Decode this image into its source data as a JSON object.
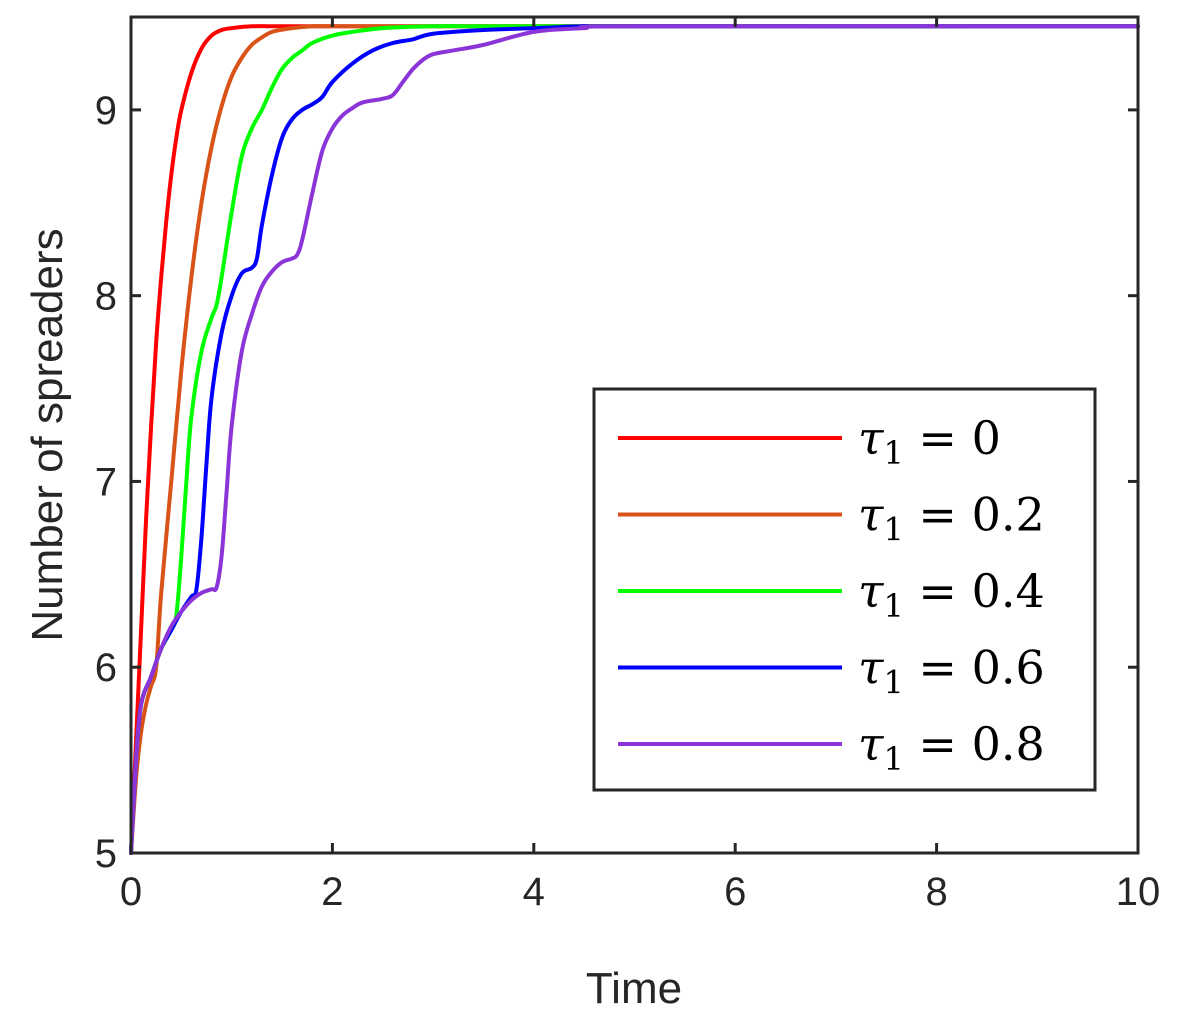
{
  "chart_data": {
    "type": "line",
    "title": "",
    "xlabel": "Time",
    "ylabel": "Number of spreaders",
    "xlim": [
      0,
      10
    ],
    "ylim": [
      5,
      9.5
    ],
    "xticks": [
      0,
      2,
      4,
      6,
      8,
      10
    ],
    "yticks": [
      5,
      6,
      7,
      8,
      9
    ],
    "xtick_labels": [
      "0",
      "2",
      "4",
      "6",
      "8",
      "10"
    ],
    "ytick_labels": [
      "5",
      "6",
      "7",
      "8",
      "9"
    ],
    "grid": false,
    "legend_position": "lower-right",
    "series": [
      {
        "name": "τ1 = 0",
        "legend_var": "τ",
        "legend_sub": "1",
        "legend_rest": " = 0",
        "color": "#ff0000",
        "x": [
          0,
          0.05,
          0.1,
          0.15,
          0.2,
          0.25,
          0.3,
          0.35,
          0.4,
          0.45,
          0.5,
          0.6,
          0.7,
          0.8,
          0.9,
          1.0,
          1.2,
          1.5,
          2.0,
          3.0,
          5.0,
          10.0
        ],
        "y": [
          5.0,
          5.6,
          6.2,
          6.8,
          7.3,
          7.75,
          8.1,
          8.4,
          8.65,
          8.85,
          9.0,
          9.2,
          9.33,
          9.4,
          9.43,
          9.44,
          9.45,
          9.45,
          9.45,
          9.45,
          9.45,
          9.45
        ]
      },
      {
        "name": "τ1 = 0.2",
        "legend_var": "τ",
        "legend_sub": "1",
        "legend_rest": " = 0.2",
        "color": "#d95319",
        "x": [
          0,
          0.05,
          0.1,
          0.15,
          0.2,
          0.25,
          0.3,
          0.4,
          0.5,
          0.6,
          0.7,
          0.8,
          0.9,
          1.0,
          1.1,
          1.2,
          1.3,
          1.4,
          1.6,
          1.8,
          2.0,
          3.0,
          5.0,
          10.0
        ],
        "y": [
          5.0,
          5.4,
          5.65,
          5.8,
          5.9,
          6.0,
          6.4,
          7.0,
          7.6,
          8.1,
          8.5,
          8.8,
          9.02,
          9.18,
          9.28,
          9.35,
          9.39,
          9.42,
          9.44,
          9.45,
          9.45,
          9.45,
          9.45,
          9.45
        ]
      },
      {
        "name": "τ1 = 0.4",
        "legend_var": "τ",
        "legend_sub": "1",
        "legend_rest": " = 0.4",
        "color": "#00ff00",
        "x": [
          0,
          0.05,
          0.1,
          0.2,
          0.3,
          0.4,
          0.45,
          0.5,
          0.55,
          0.6,
          0.7,
          0.8,
          0.85,
          0.9,
          1.0,
          1.1,
          1.2,
          1.3,
          1.4,
          1.5,
          1.6,
          1.7,
          1.8,
          2.0,
          2.2,
          2.5,
          3.0,
          3.5,
          4.0,
          5.0,
          10.0
        ],
        "y": [
          5.0,
          5.5,
          5.8,
          5.95,
          6.1,
          6.2,
          6.28,
          6.6,
          7.0,
          7.35,
          7.7,
          7.88,
          7.95,
          8.1,
          8.45,
          8.75,
          8.9,
          9.0,
          9.12,
          9.22,
          9.28,
          9.32,
          9.36,
          9.4,
          9.42,
          9.44,
          9.45,
          9.45,
          9.45,
          9.45,
          9.45
        ]
      },
      {
        "name": "τ1 = 0.6",
        "legend_var": "τ",
        "legend_sub": "1",
        "legend_rest": " = 0.6",
        "color": "#0000ff",
        "x": [
          0,
          0.05,
          0.1,
          0.2,
          0.3,
          0.4,
          0.5,
          0.6,
          0.65,
          0.7,
          0.75,
          0.8,
          0.9,
          1.0,
          1.1,
          1.2,
          1.25,
          1.3,
          1.4,
          1.5,
          1.6,
          1.7,
          1.8,
          1.9,
          2.0,
          2.2,
          2.4,
          2.6,
          2.8,
          3.0,
          3.5,
          4.0,
          4.5,
          5.0,
          10.0
        ],
        "y": [
          5.0,
          5.5,
          5.8,
          5.95,
          6.1,
          6.2,
          6.3,
          6.38,
          6.42,
          6.7,
          7.1,
          7.45,
          7.8,
          8.0,
          8.12,
          8.15,
          8.2,
          8.38,
          8.65,
          8.85,
          8.95,
          9.0,
          9.03,
          9.07,
          9.15,
          9.25,
          9.32,
          9.36,
          9.38,
          9.41,
          9.43,
          9.44,
          9.45,
          9.45,
          9.45
        ]
      },
      {
        "name": "τ1 = 0.8",
        "legend_var": "τ",
        "legend_sub": "1",
        "legend_rest": " = 0.8",
        "color": "#8b35d9",
        "x": [
          0,
          0.05,
          0.1,
          0.2,
          0.3,
          0.4,
          0.5,
          0.6,
          0.7,
          0.8,
          0.85,
          0.9,
          0.95,
          1.0,
          1.1,
          1.2,
          1.3,
          1.4,
          1.5,
          1.6,
          1.65,
          1.7,
          1.8,
          1.9,
          2.0,
          2.1,
          2.2,
          2.3,
          2.5,
          2.6,
          2.7,
          2.8,
          2.9,
          3.0,
          3.2,
          3.5,
          4.0,
          4.5,
          5.0,
          10.0
        ],
        "y": [
          5.0,
          5.5,
          5.8,
          5.95,
          6.1,
          6.22,
          6.3,
          6.36,
          6.4,
          6.42,
          6.43,
          6.6,
          6.95,
          7.3,
          7.7,
          7.9,
          8.05,
          8.13,
          8.18,
          8.2,
          8.22,
          8.3,
          8.55,
          8.78,
          8.9,
          8.97,
          9.01,
          9.04,
          9.06,
          9.08,
          9.15,
          9.22,
          9.27,
          9.3,
          9.32,
          9.35,
          9.42,
          9.44,
          9.45,
          9.45
        ]
      }
    ]
  }
}
